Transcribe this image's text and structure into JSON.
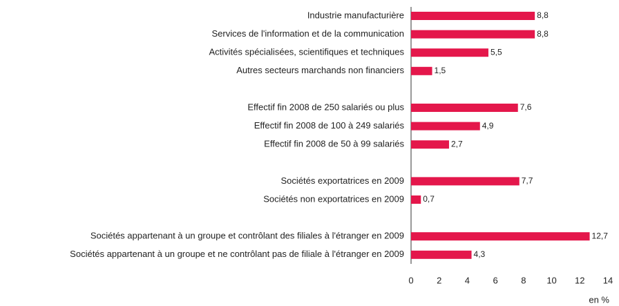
{
  "chart_data": {
    "type": "barh",
    "categories": [
      "Industrie manufacturière",
      "Services de l'information et de la communication",
      "Activités spécialisées, scientifiques et techniques",
      "Autres secteurs marchands non financiers",
      null,
      "Effectif fin 2008 de 250 salariés ou plus",
      "Effectif fin 2008 de 100 à 249 salariés",
      "Effectif fin 2008 de 50 à 99 salariés",
      null,
      "Sociétés exportatrices en 2009",
      "Sociétés non exportatrices en 2009",
      null,
      "Sociétés appartenant à un groupe et contrôlant des filiales à l'étranger en 2009",
      "Sociétés appartenant à un groupe et ne contrôlant pas de filiale à l'étranger en 2009"
    ],
    "values": [
      8.8,
      8.8,
      5.5,
      1.5,
      null,
      7.6,
      4.9,
      2.7,
      null,
      7.7,
      0.7,
      null,
      12.7,
      4.3
    ],
    "value_labels": [
      "8,8",
      "8,8",
      "5,5",
      "1,5",
      null,
      "7,6",
      "4,9",
      "2,7",
      null,
      "7,7",
      "0,7",
      null,
      "12,7",
      "4,3"
    ],
    "color": "#e4174b",
    "xlabel": "en %",
    "xlim": [
      0,
      14
    ],
    "xticks": [
      0,
      2,
      4,
      6,
      8,
      10,
      12,
      14
    ]
  }
}
